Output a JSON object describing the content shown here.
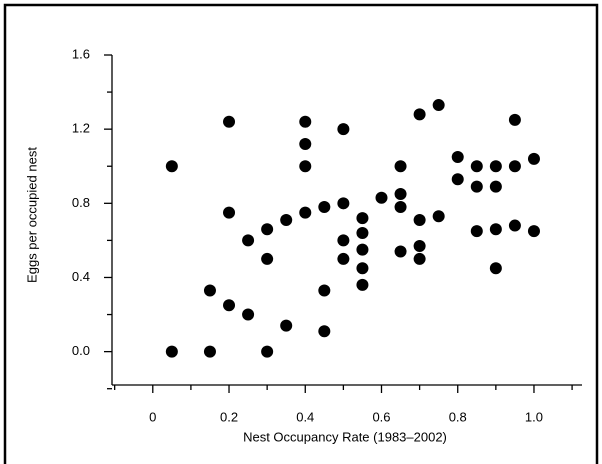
{
  "chart_data": {
    "type": "scatter",
    "x_label": "Nest Occupancy Rate (1983–2002)",
    "y_label": "Eggs per occupied nest",
    "color": "#000000",
    "x": [
      0.05,
      0.05,
      0.15,
      0.15,
      0.2,
      0.2,
      0.2,
      0.25,
      0.25,
      0.3,
      0.3,
      0.3,
      0.35,
      0.35,
      0.4,
      0.4,
      0.4,
      0.4,
      0.45,
      0.45,
      0.45,
      0.5,
      0.5,
      0.5,
      0.5,
      0.55,
      0.55,
      0.55,
      0.55,
      0.55,
      0.6,
      0.65,
      0.65,
      0.65,
      0.65,
      0.7,
      0.7,
      0.7,
      0.7,
      0.75,
      0.75,
      0.8,
      0.8,
      0.85,
      0.85,
      0.85,
      0.9,
      0.9,
      0.9,
      0.9,
      0.95,
      0.95,
      0.95,
      1.0,
      1.0
    ],
    "values": [
      1.0,
      0.0,
      0.0,
      0.33,
      1.24,
      0.75,
      0.25,
      0.6,
      0.2,
      0.66,
      0.5,
      0.0,
      0.71,
      0.14,
      1.24,
      1.12,
      1.0,
      0.75,
      0.78,
      0.33,
      0.11,
      1.2,
      0.8,
      0.6,
      0.5,
      0.72,
      0.64,
      0.55,
      0.45,
      0.36,
      0.83,
      1.0,
      0.85,
      0.78,
      0.54,
      1.28,
      0.71,
      0.57,
      0.5,
      1.33,
      0.73,
      1.05,
      0.93,
      1.0,
      0.89,
      0.65,
      1.0,
      0.89,
      0.66,
      0.45,
      1.25,
      1.0,
      0.68,
      1.04,
      0.65
    ],
    "xlim": [
      -0.107,
      1.126
    ],
    "ylim": [
      -0.18,
      1.6
    ],
    "xticks": [
      0,
      0.2,
      0.4,
      0.6,
      0.8,
      {
        "value": 1,
        "label": "1.0"
      }
    ],
    "yticks": [
      {
        "value": 0,
        "label": "0.0"
      },
      0.4,
      0.8,
      1.2,
      1.6
    ],
    "xminorticks": [
      -0.1,
      0.1,
      0.3,
      0.5,
      0.7,
      0.9,
      1.1
    ],
    "yminorticks": [
      -0.2,
      0.2,
      0.6,
      1.0,
      1.4
    ]
  }
}
